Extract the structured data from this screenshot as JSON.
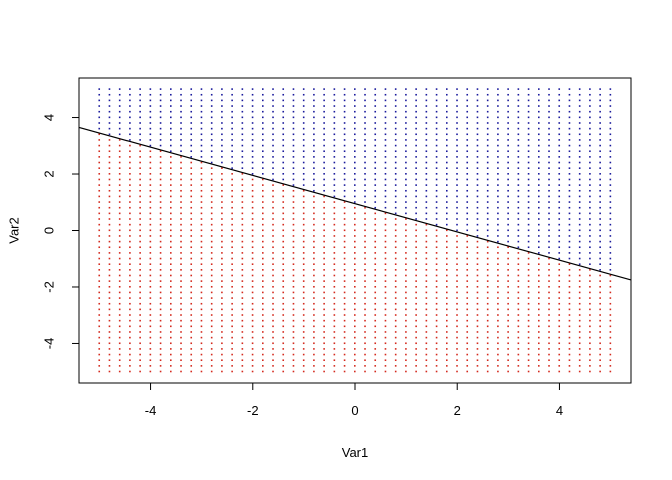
{
  "chart_data": {
    "type": "scatter",
    "title": "",
    "xlabel": "Var1",
    "ylabel": "Var2",
    "xlim": [
      -5.4,
      5.4
    ],
    "ylim": [
      -5.4,
      5.4
    ],
    "xticks": [
      -4,
      -2,
      0,
      2,
      4
    ],
    "xtick_labels": [
      "-4",
      "-2",
      "0",
      "2",
      "4"
    ],
    "yticks": [
      -4,
      -2,
      0,
      2,
      4
    ],
    "ytick_labels": [
      "-4",
      "-2",
      "0",
      "2",
      "4"
    ],
    "grid": false,
    "legend": "none",
    "grid_points": {
      "x_range": [
        -5,
        5
      ],
      "y_range": [
        -5,
        5
      ],
      "step": 0.2
    },
    "decision_line": {
      "intercept": 0.95,
      "slope": -0.5
    },
    "classes": [
      {
        "region": "above_line",
        "color": "#1a1a9c"
      },
      {
        "region": "below_line",
        "color": "#d42a1e"
      }
    ],
    "line_color": "#000000"
  }
}
